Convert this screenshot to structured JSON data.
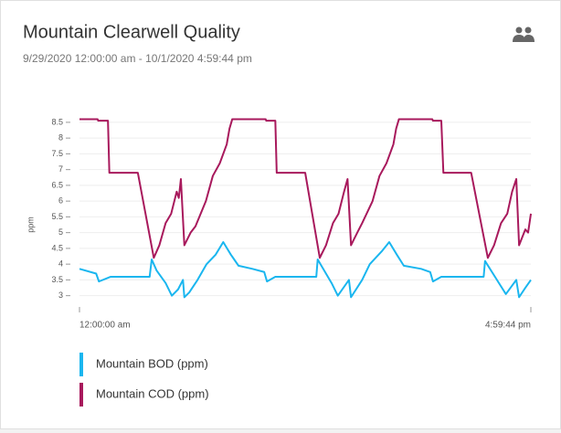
{
  "chart_data": {
    "type": "line",
    "title": "Mountain Clearwell Quality",
    "subtitle": "9/29/2020 12:00:00 am - 10/1/2020 4:59:44 pm",
    "ylabel": "ppm",
    "ylim": [
      2.7,
      8.7
    ],
    "yticks": [
      3,
      3.5,
      4,
      4.5,
      5,
      5.5,
      6,
      6.5,
      7,
      7.5,
      8,
      8.5
    ],
    "xlim": [
      0,
      64.9956
    ],
    "xticks": [
      {
        "value": 0,
        "label": "12:00:00 am"
      },
      {
        "value": 64.9956,
        "label": "4:59:44 pm"
      }
    ],
    "grid": true,
    "series": [
      {
        "name": "Mountain BOD (ppm)",
        "color": "#1ab6ef",
        "x": [
          0,
          2.4,
          2.8,
          4.5,
          10.1,
          10.4,
          11.1,
          12.4,
          13.3,
          14.2,
          14.9,
          15.1,
          15.8,
          17,
          18.3,
          19.6,
          20.7,
          21.8,
          22.9,
          24.9,
          26.6,
          27,
          28.2,
          34.1,
          34.3,
          36.3,
          37.2,
          38.8,
          39.1,
          40.7,
          41.8,
          43.5,
          44.6,
          45.7,
          46.7,
          49.2,
          50.5,
          50.9,
          52.1,
          58.2,
          58.4,
          60.4,
          61.4,
          62.9,
          63.3,
          64.2,
          65
        ],
        "values": [
          3.85,
          3.7,
          3.45,
          3.6,
          3.6,
          4.15,
          3.8,
          3.4,
          3.0,
          3.2,
          3.5,
          2.95,
          3.1,
          3.5,
          4.0,
          4.3,
          4.7,
          4.3,
          3.95,
          3.85,
          3.75,
          3.45,
          3.6,
          3.6,
          4.15,
          3.4,
          3.0,
          3.5,
          2.95,
          3.5,
          4.0,
          4.4,
          4.7,
          4.3,
          3.95,
          3.85,
          3.75,
          3.45,
          3.6,
          3.6,
          4.1,
          3.4,
          3.05,
          3.5,
          2.95,
          3.25,
          3.5
        ]
      },
      {
        "name": "Mountain COD (ppm)",
        "color": "#a8195c",
        "x": [
          0,
          2.6,
          2.7,
          4.1,
          4.3,
          8.4,
          10.7,
          11.5,
          12.4,
          13.2,
          14.0,
          14.3,
          14.6,
          15.1,
          16.0,
          16.7,
          18.2,
          19.2,
          20.2,
          21.2,
          21.6,
          22.0,
          22.6,
          26.8,
          26.9,
          28.2,
          28.4,
          32.5,
          34.6,
          35.5,
          36.5,
          37.3,
          38.1,
          38.6,
          39.1,
          40.0,
          40.7,
          42.2,
          43.2,
          44.2,
          45.2,
          45.6,
          46.0,
          46.6,
          50.8,
          50.9,
          52.1,
          52.4,
          56.4,
          58.8,
          59.7,
          60.7,
          61.6,
          62.3,
          62.9,
          63.3,
          64.2,
          64.6,
          65
        ],
        "values": [
          8.6,
          8.6,
          8.55,
          8.55,
          6.9,
          6.9,
          4.2,
          4.6,
          5.3,
          5.6,
          6.3,
          6.1,
          6.7,
          4.6,
          5.0,
          5.2,
          6.0,
          6.8,
          7.2,
          7.8,
          8.3,
          8.6,
          8.6,
          8.6,
          8.55,
          8.55,
          6.9,
          6.9,
          4.2,
          4.6,
          5.3,
          5.6,
          6.3,
          6.7,
          4.6,
          5.0,
          5.3,
          6.0,
          6.8,
          7.2,
          7.8,
          8.3,
          8.6,
          8.6,
          8.6,
          8.55,
          8.55,
          6.9,
          6.9,
          4.2,
          4.6,
          5.3,
          5.6,
          6.3,
          6.7,
          4.6,
          5.1,
          5.0,
          5.6
        ]
      }
    ]
  }
}
